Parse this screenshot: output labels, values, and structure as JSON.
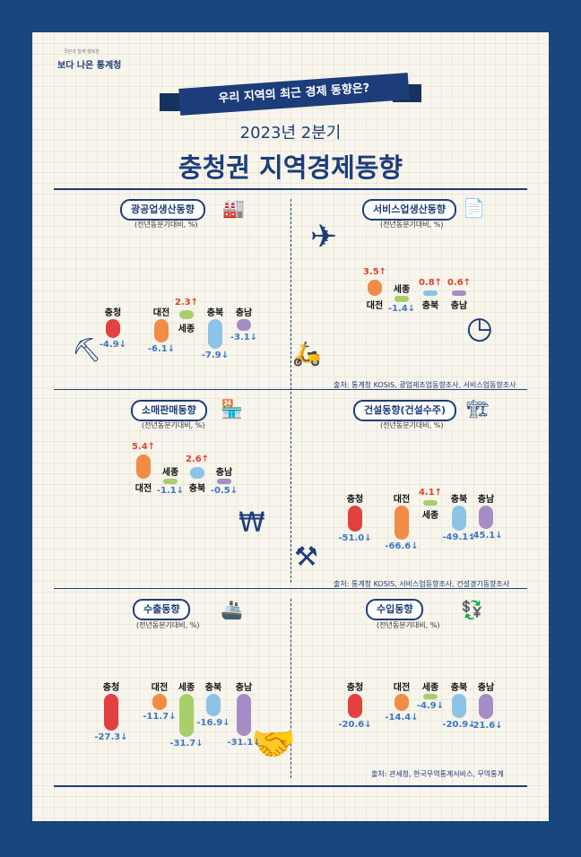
{
  "header": {
    "logo": "보다 나은 통계청",
    "logo_sub": "국민과 함께 행복한",
    "banner": "우리 지역의 최근 경제 동향은?",
    "subtitle": "2023년 2분기",
    "title": "충청권 지역경제동향"
  },
  "unit_label": "(전년동분기대비, %)",
  "sources": {
    "top": "출처: 통계청 KOSIS, 광업제조업동향조사, 서비스업동향조사",
    "mid": "출처: 통계청 KOSIS, 서비스업동향조사, 건설경기동향조사",
    "bottom": "출처: 관세청, 한국무역통계서비스, 무역통계"
  },
  "colors": {
    "up": "#e0412a",
    "down": "#3b78c7"
  },
  "chart_data": [
    {
      "id": "mining",
      "type": "bar",
      "title": "광공업생산동향",
      "categories": [
        "충청",
        "대전",
        "세종",
        "충북",
        "충남"
      ],
      "values": [
        -4.9,
        -6.1,
        2.3,
        -7.9,
        -3.1
      ],
      "colors": [
        "#e2413f",
        "#f28b45",
        "#a9cf6d",
        "#8cc3e7",
        "#a58cc4"
      ]
    },
    {
      "id": "service",
      "type": "bar",
      "title": "서비스업생산동향",
      "categories": [
        "대전",
        "세종",
        "충북",
        "충남"
      ],
      "values": [
        3.5,
        -1.4,
        0.8,
        0.6
      ],
      "colors": [
        "#f28b45",
        "#a9cf6d",
        "#8cc3e7",
        "#a58cc4"
      ]
    },
    {
      "id": "retail",
      "type": "bar",
      "title": "소매판매동향",
      "categories": [
        "대전",
        "세종",
        "충북",
        "충남"
      ],
      "values": [
        5.4,
        -1.1,
        2.6,
        -0.5
      ],
      "colors": [
        "#f28b45",
        "#a9cf6d",
        "#8cc3e7",
        "#a58cc4"
      ]
    },
    {
      "id": "construction",
      "type": "bar",
      "title": "건설동향(건설수주)",
      "categories": [
        "충청",
        "대전",
        "세종",
        "충북",
        "충남"
      ],
      "values": [
        -51.0,
        -66.6,
        4.1,
        -49.1,
        -45.1
      ],
      "colors": [
        "#e2413f",
        "#f28b45",
        "#a9cf6d",
        "#8cc3e7",
        "#a58cc4"
      ]
    },
    {
      "id": "export",
      "type": "bar",
      "title": "수출동향",
      "categories": [
        "충청",
        "대전",
        "세종",
        "충북",
        "충남"
      ],
      "values": [
        -27.3,
        -11.7,
        -31.7,
        -16.9,
        -31.1
      ],
      "colors": [
        "#e2413f",
        "#f28b45",
        "#a9cf6d",
        "#8cc3e7",
        "#a58cc4"
      ]
    },
    {
      "id": "import",
      "type": "bar",
      "title": "수입동향",
      "categories": [
        "충청",
        "대전",
        "세종",
        "충북",
        "충남"
      ],
      "values": [
        -20.6,
        -14.4,
        -4.9,
        -20.9,
        -21.6
      ],
      "colors": [
        "#e2413f",
        "#f28b45",
        "#a9cf6d",
        "#8cc3e7",
        "#a58cc4"
      ]
    }
  ]
}
